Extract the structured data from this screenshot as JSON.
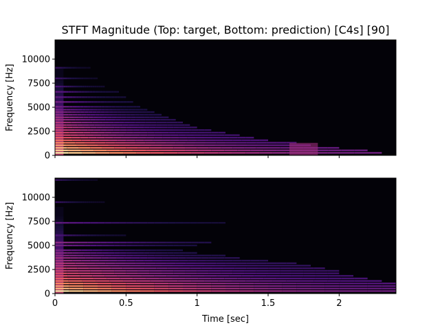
{
  "chart_data": [
    {
      "type": "heatmap",
      "title": "STFT Magnitude (Top: target, Bottom: prediction) [C4s] [90]",
      "xlabel": "",
      "ylabel": "Frequency [Hz]",
      "xlim": [
        0,
        2.4
      ],
      "ylim": [
        0,
        12000
      ],
      "xticks": [
        0,
        0.5,
        1,
        1.5,
        2
      ],
      "xtick_labels": [
        "",
        "",
        "",
        "",
        ""
      ],
      "yticks": [
        0,
        2500,
        5000,
        7500,
        10000
      ],
      "ytick_labels": [
        "0",
        "2500",
        "5000",
        "7500",
        "10000"
      ],
      "colormap": "magma",
      "background": "#030208",
      "onset_time": 0.0,
      "harmonics": [
        {
          "freq": 260,
          "decay_end": 2.3,
          "intensity": 0.95
        },
        {
          "freq": 520,
          "decay_end": 2.2,
          "intensity": 0.9
        },
        {
          "freq": 780,
          "decay_end": 2.0,
          "intensity": 0.85
        },
        {
          "freq": 1050,
          "decay_end": 1.8,
          "intensity": 0.8
        },
        {
          "freq": 1310,
          "decay_end": 1.7,
          "intensity": 0.75
        },
        {
          "freq": 1570,
          "decay_end": 1.5,
          "intensity": 0.7
        },
        {
          "freq": 1840,
          "decay_end": 1.4,
          "intensity": 0.65
        },
        {
          "freq": 2100,
          "decay_end": 1.3,
          "intensity": 0.6
        },
        {
          "freq": 2360,
          "decay_end": 1.2,
          "intensity": 0.6
        },
        {
          "freq": 2630,
          "decay_end": 1.1,
          "intensity": 0.55
        },
        {
          "freq": 2900,
          "decay_end": 1.0,
          "intensity": 0.55
        },
        {
          "freq": 3150,
          "decay_end": 0.95,
          "intensity": 0.5
        },
        {
          "freq": 3420,
          "decay_end": 0.9,
          "intensity": 0.5
        },
        {
          "freq": 3700,
          "decay_end": 0.85,
          "intensity": 0.45
        },
        {
          "freq": 3950,
          "decay_end": 0.8,
          "intensity": 0.45
        },
        {
          "freq": 4220,
          "decay_end": 0.75,
          "intensity": 0.4
        },
        {
          "freq": 4500,
          "decay_end": 0.7,
          "intensity": 0.4
        },
        {
          "freq": 4750,
          "decay_end": 0.65,
          "intensity": 0.35
        },
        {
          "freq": 5050,
          "decay_end": 0.6,
          "intensity": 0.35
        },
        {
          "freq": 5550,
          "decay_end": 0.55,
          "intensity": 0.35
        },
        {
          "freq": 6050,
          "decay_end": 0.5,
          "intensity": 0.3
        },
        {
          "freq": 6600,
          "decay_end": 0.45,
          "intensity": 0.3
        },
        {
          "freq": 7150,
          "decay_end": 0.35,
          "intensity": 0.25
        },
        {
          "freq": 8000,
          "decay_end": 0.3,
          "intensity": 0.22
        },
        {
          "freq": 9100,
          "decay_end": 0.25,
          "intensity": 0.2
        }
      ],
      "transient_blob": {
        "t_start": 1.65,
        "t_end": 1.85,
        "freq_top": 1300,
        "intensity": 0.45
      }
    },
    {
      "type": "heatmap",
      "title": "",
      "xlabel": "Time [sec]",
      "ylabel": "Frequency [Hz]",
      "xlim": [
        0,
        2.4
      ],
      "ylim": [
        0,
        12000
      ],
      "xticks": [
        0,
        0.5,
        1,
        1.5,
        2
      ],
      "xtick_labels": [
        "0",
        "0.5",
        "1",
        "1.5",
        "2"
      ],
      "yticks": [
        0,
        2500,
        5000,
        7500,
        10000
      ],
      "ytick_labels": [
        "0",
        "2500",
        "5000",
        "7500",
        "10000"
      ],
      "colormap": "magma",
      "background": "#030208",
      "onset_time": 0.0,
      "harmonics": [
        {
          "freq": 260,
          "decay_end": 2.4,
          "intensity": 0.95
        },
        {
          "freq": 520,
          "decay_end": 2.4,
          "intensity": 0.85
        },
        {
          "freq": 780,
          "decay_end": 2.4,
          "intensity": 0.8
        },
        {
          "freq": 1050,
          "decay_end": 2.4,
          "intensity": 0.75
        },
        {
          "freq": 1310,
          "decay_end": 2.3,
          "intensity": 0.7
        },
        {
          "freq": 1570,
          "decay_end": 2.2,
          "intensity": 0.65
        },
        {
          "freq": 1840,
          "decay_end": 2.1,
          "intensity": 0.6
        },
        {
          "freq": 2100,
          "decay_end": 2.0,
          "intensity": 0.6
        },
        {
          "freq": 2360,
          "decay_end": 2.0,
          "intensity": 0.55
        },
        {
          "freq": 2630,
          "decay_end": 1.9,
          "intensity": 0.55
        },
        {
          "freq": 2900,
          "decay_end": 1.8,
          "intensity": 0.5
        },
        {
          "freq": 3150,
          "decay_end": 1.7,
          "intensity": 0.5
        },
        {
          "freq": 3420,
          "decay_end": 1.5,
          "intensity": 0.45
        },
        {
          "freq": 3700,
          "decay_end": 1.3,
          "intensity": 0.45
        },
        {
          "freq": 3950,
          "decay_end": 1.2,
          "intensity": 0.4
        },
        {
          "freq": 4220,
          "decay_end": 1.0,
          "intensity": 0.4
        },
        {
          "freq": 4500,
          "decay_end": 0.9,
          "intensity": 0.35
        },
        {
          "freq": 5000,
          "decay_end": 1.0,
          "intensity": 0.35
        },
        {
          "freq": 5300,
          "decay_end": 1.1,
          "intensity": 0.4
        },
        {
          "freq": 6050,
          "decay_end": 0.5,
          "intensity": 0.25
        },
        {
          "freq": 7350,
          "decay_end": 1.2,
          "intensity": 0.3
        },
        {
          "freq": 9500,
          "decay_end": 0.35,
          "intensity": 0.2
        },
        {
          "freq": 11800,
          "decay_end": 0.3,
          "intensity": 0.2
        }
      ],
      "transient_blob": null
    }
  ]
}
